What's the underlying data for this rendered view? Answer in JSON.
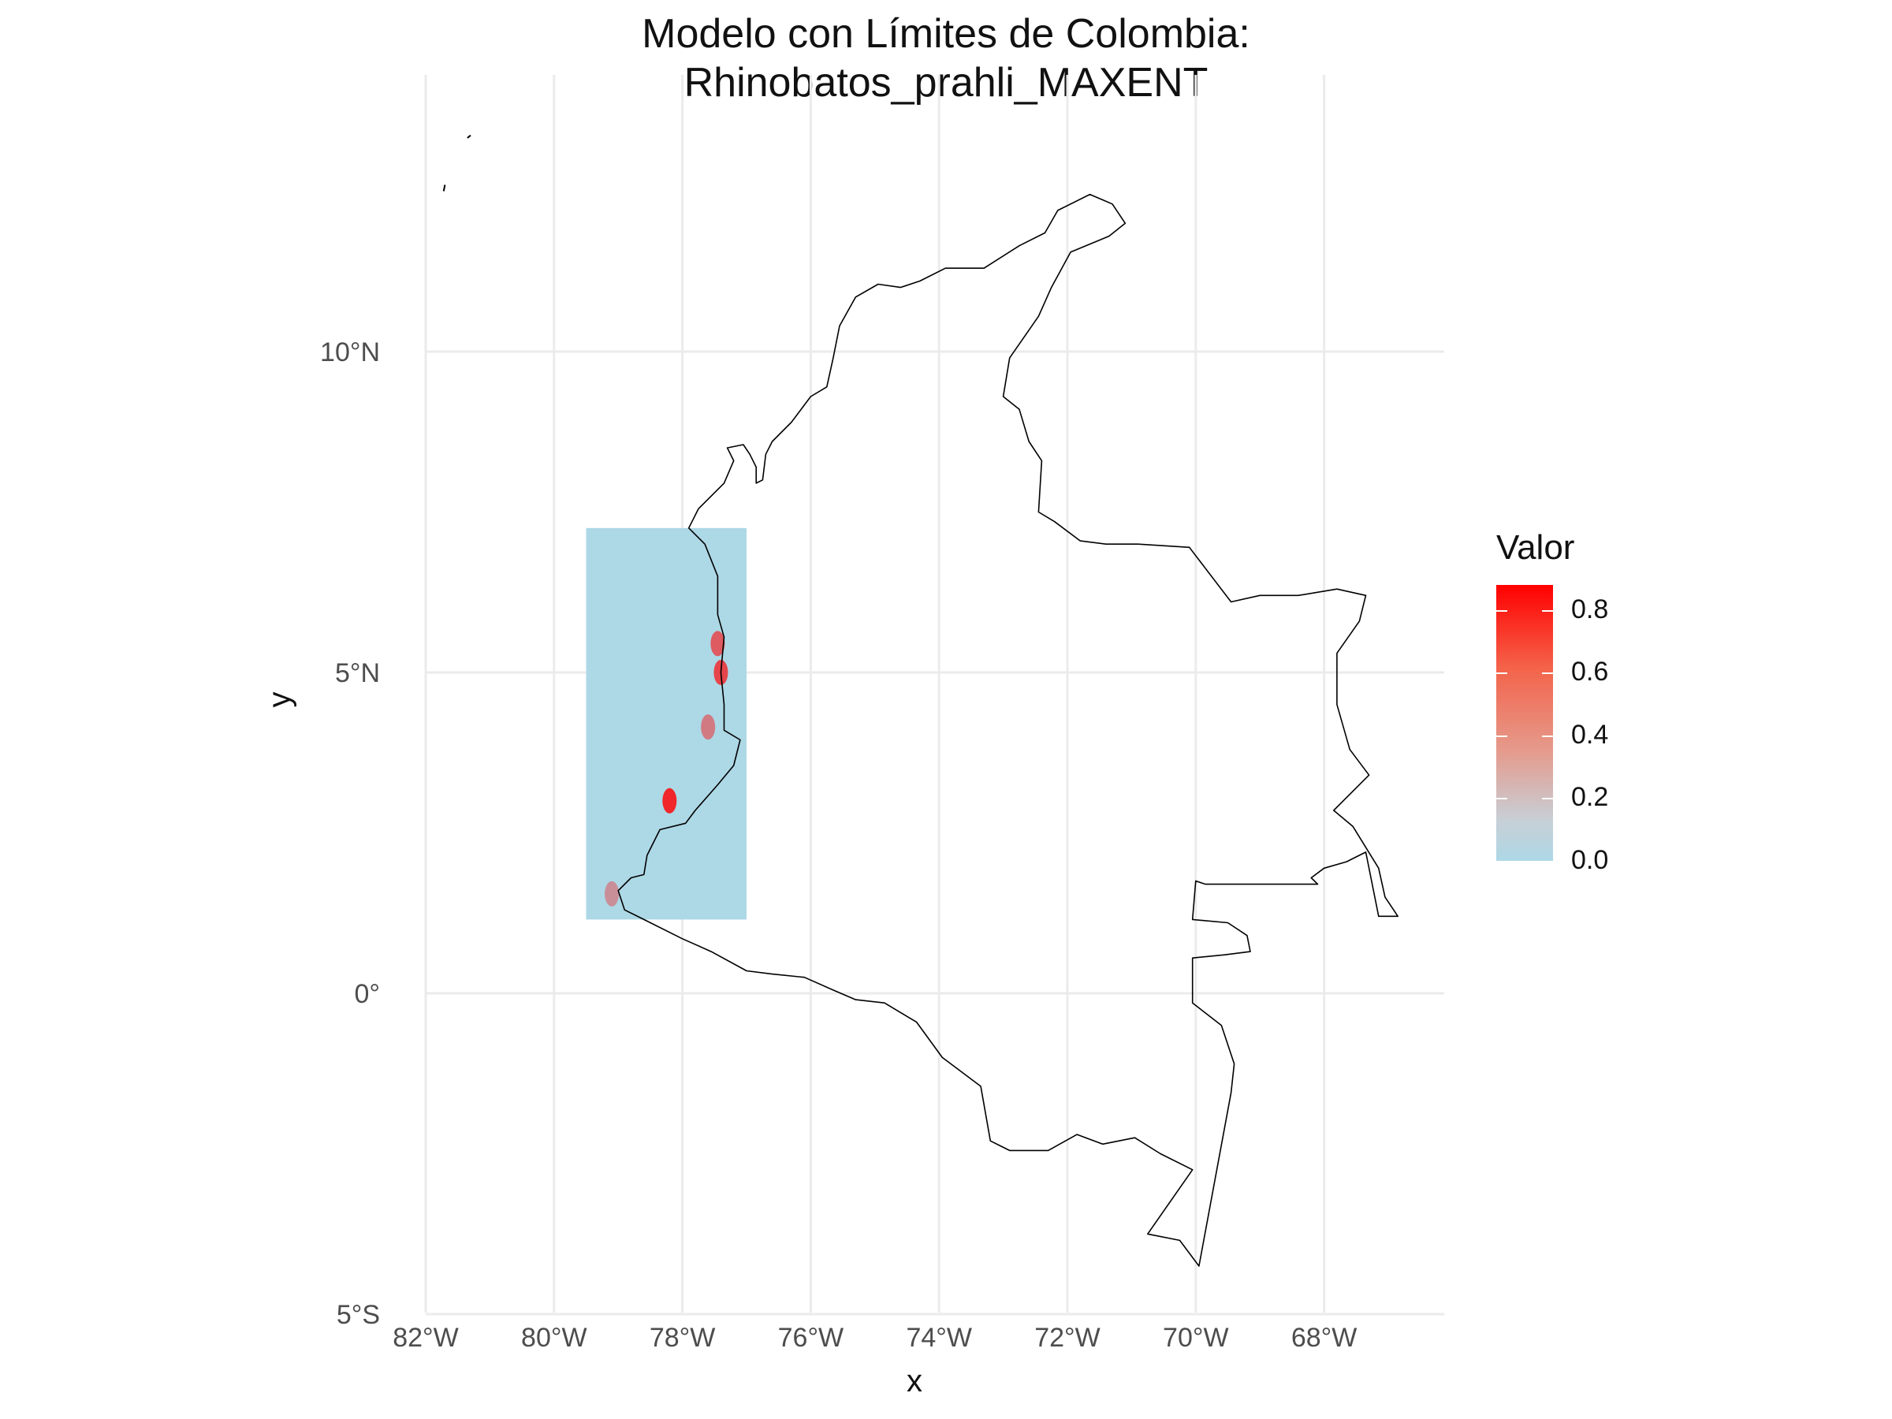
{
  "title": "Modelo con Límites de Colombia: Rhinobatos_prahli_MAXENT",
  "xlabel": "x",
  "ylabel": "y",
  "x_ticks": [
    {
      "value": -82,
      "label": "82°W"
    },
    {
      "value": -80,
      "label": "80°W"
    },
    {
      "value": -78,
      "label": "78°W"
    },
    {
      "value": -76,
      "label": "76°W"
    },
    {
      "value": -74,
      "label": "74°W"
    },
    {
      "value": -72,
      "label": "72°W"
    },
    {
      "value": -70,
      "label": "70°W"
    },
    {
      "value": -68,
      "label": "68°W"
    }
  ],
  "y_ticks": [
    {
      "value": 10,
      "label": "10°N"
    },
    {
      "value": 5,
      "label": "5°N"
    },
    {
      "value": 0,
      "label": "0°"
    },
    {
      "value": -5,
      "label": "5°S"
    }
  ],
  "xlim": [
    -82,
    -66.2
  ],
  "ylim": [
    -5,
    14.2
  ],
  "grid": true,
  "legend": {
    "title": "Valor",
    "labels": [
      "0.8",
      "0.6",
      "0.4",
      "0.2",
      "0.0"
    ],
    "values": [
      0.8,
      0.6,
      0.4,
      0.2,
      0.0
    ],
    "range": [
      0.0,
      0.88
    ],
    "low_color": "#add8e6",
    "high_color": "#ff0000"
  },
  "raster_extent": {
    "lon": [
      -79.5,
      -77.0
    ],
    "lat": [
      1.15,
      7.25
    ],
    "fill": "#add8e6"
  },
  "hotspots": [
    {
      "lon": -77.45,
      "lat": 5.45,
      "value": 0.6
    },
    {
      "lon": -77.4,
      "lat": 5.0,
      "value": 0.7
    },
    {
      "lon": -77.6,
      "lat": 4.15,
      "value": 0.45
    },
    {
      "lon": -78.2,
      "lat": 3.0,
      "value": 0.85
    },
    {
      "lon": -79.1,
      "lat": 1.55,
      "value": 0.35
    }
  ],
  "boundary": [
    [
      -77.35,
      7.95
    ],
    [
      -77.2,
      8.3
    ],
    [
      -77.3,
      8.5
    ],
    [
      -77.05,
      8.55
    ],
    [
      -76.95,
      8.4
    ],
    [
      -76.85,
      8.2
    ],
    [
      -76.85,
      7.95
    ],
    [
      -76.75,
      8.0
    ],
    [
      -76.7,
      8.4
    ],
    [
      -76.6,
      8.6
    ],
    [
      -76.3,
      8.9
    ],
    [
      -76.0,
      9.3
    ],
    [
      -75.75,
      9.45
    ],
    [
      -75.65,
      9.9
    ],
    [
      -75.55,
      10.4
    ],
    [
      -75.3,
      10.85
    ],
    [
      -74.95,
      11.05
    ],
    [
      -74.6,
      11.0
    ],
    [
      -74.3,
      11.1
    ],
    [
      -73.9,
      11.3
    ],
    [
      -73.3,
      11.3
    ],
    [
      -72.75,
      11.65
    ],
    [
      -72.35,
      11.85
    ],
    [
      -72.15,
      12.2
    ],
    [
      -71.65,
      12.45
    ],
    [
      -71.3,
      12.3
    ],
    [
      -71.1,
      12.0
    ],
    [
      -71.35,
      11.8
    ],
    [
      -71.95,
      11.55
    ],
    [
      -72.25,
      11.0
    ],
    [
      -72.45,
      10.55
    ],
    [
      -72.9,
      9.9
    ],
    [
      -73.0,
      9.3
    ],
    [
      -72.75,
      9.1
    ],
    [
      -72.6,
      8.6
    ],
    [
      -72.4,
      8.3
    ],
    [
      -72.45,
      7.5
    ],
    [
      -72.2,
      7.35
    ],
    [
      -71.8,
      7.05
    ],
    [
      -71.4,
      7.0
    ],
    [
      -70.9,
      7.0
    ],
    [
      -70.1,
      6.95
    ],
    [
      -69.45,
      6.1
    ],
    [
      -69.0,
      6.2
    ],
    [
      -68.4,
      6.2
    ],
    [
      -67.8,
      6.3
    ],
    [
      -67.35,
      6.2
    ],
    [
      -67.45,
      5.8
    ],
    [
      -67.8,
      5.3
    ],
    [
      -67.8,
      4.5
    ],
    [
      -67.6,
      3.8
    ],
    [
      -67.3,
      3.4
    ],
    [
      -67.85,
      2.85
    ],
    [
      -67.55,
      2.6
    ],
    [
      -67.15,
      1.95
    ],
    [
      -67.05,
      1.5
    ],
    [
      -66.85,
      1.2
    ],
    [
      -67.15,
      1.2
    ],
    [
      -67.35,
      2.2
    ],
    [
      -67.65,
      2.05
    ],
    [
      -68.0,
      1.95
    ],
    [
      -68.2,
      1.8
    ],
    [
      -68.1,
      1.7
    ],
    [
      -69.35,
      1.7
    ],
    [
      -69.85,
      1.7
    ],
    [
      -70.0,
      1.75
    ],
    [
      -70.05,
      1.15
    ],
    [
      -69.5,
      1.1
    ],
    [
      -69.2,
      0.9
    ],
    [
      -69.15,
      0.65
    ],
    [
      -69.55,
      0.6
    ],
    [
      -70.05,
      0.55
    ],
    [
      -70.05,
      -0.15
    ],
    [
      -69.6,
      -0.5
    ],
    [
      -69.4,
      -1.1
    ],
    [
      -69.45,
      -1.55
    ],
    [
      -69.95,
      -4.25
    ],
    [
      -70.25,
      -3.85
    ],
    [
      -70.75,
      -3.75
    ],
    [
      -70.05,
      -2.75
    ],
    [
      -70.55,
      -2.5
    ],
    [
      -70.95,
      -2.25
    ],
    [
      -71.45,
      -2.35
    ],
    [
      -71.85,
      -2.2
    ],
    [
      -72.3,
      -2.45
    ],
    [
      -72.9,
      -2.45
    ],
    [
      -73.2,
      -2.3
    ],
    [
      -73.35,
      -1.45
    ],
    [
      -73.95,
      -1.0
    ],
    [
      -74.35,
      -0.45
    ],
    [
      -74.85,
      -0.15
    ],
    [
      -75.3,
      -0.1
    ],
    [
      -75.65,
      0.05
    ],
    [
      -76.1,
      0.25
    ],
    [
      -76.6,
      0.3
    ],
    [
      -77.0,
      0.35
    ],
    [
      -77.55,
      0.65
    ],
    [
      -78.0,
      0.85
    ],
    [
      -78.6,
      1.15
    ],
    [
      -78.9,
      1.3
    ],
    [
      -79.0,
      1.6
    ],
    [
      -78.8,
      1.8
    ],
    [
      -78.6,
      1.85
    ],
    [
      -78.55,
      2.15
    ],
    [
      -78.35,
      2.55
    ],
    [
      -77.95,
      2.65
    ],
    [
      -77.8,
      2.85
    ],
    [
      -77.45,
      3.25
    ],
    [
      -77.2,
      3.55
    ],
    [
      -77.1,
      3.95
    ],
    [
      -77.35,
      4.1
    ],
    [
      -77.35,
      4.5
    ],
    [
      -77.4,
      5.0
    ],
    [
      -77.35,
      5.55
    ],
    [
      -77.45,
      5.9
    ],
    [
      -77.45,
      6.5
    ],
    [
      -77.65,
      7.0
    ],
    [
      -77.9,
      7.25
    ],
    [
      -77.75,
      7.55
    ],
    [
      -77.35,
      7.95
    ]
  ],
  "islands": [
    [
      [
        -81.3,
        13.37
      ],
      [
        -81.35,
        13.33
      ]
    ],
    [
      [
        -81.7,
        12.6
      ],
      [
        -81.72,
        12.5
      ]
    ]
  ]
}
